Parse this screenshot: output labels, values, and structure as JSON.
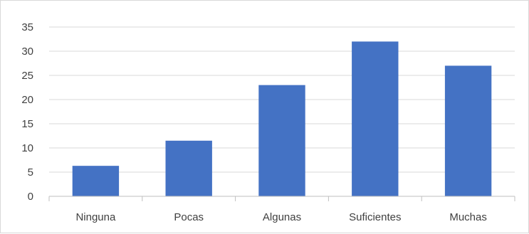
{
  "chart_data": {
    "type": "bar",
    "categories": [
      "Ninguna",
      "Pocas",
      "Algunas",
      "Suficientes",
      "Muchas"
    ],
    "values": [
      6.3,
      11.5,
      23,
      32,
      27
    ],
    "title": "",
    "xlabel": "",
    "ylabel": "",
    "ylim": [
      0,
      35
    ],
    "yticks": [
      "0",
      "5",
      "10",
      "15",
      "20",
      "25",
      "30",
      "35"
    ],
    "grid": true,
    "legend": "none",
    "colors": {
      "bar": "#4472c4",
      "grid": "#d9d9d9",
      "axis": "#bfbfbf",
      "text": "#404040"
    }
  }
}
